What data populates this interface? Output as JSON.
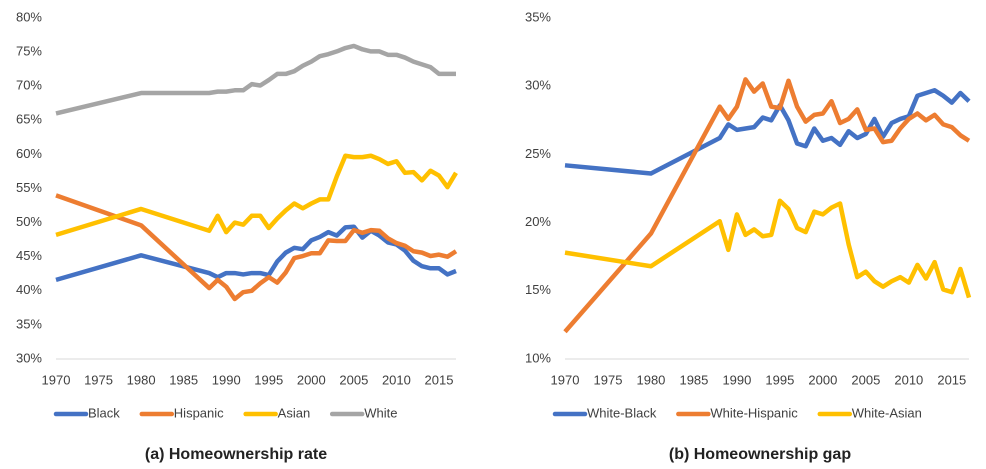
{
  "chart_data": [
    {
      "type": "line",
      "caption": "(a) Homeownership rate",
      "x": [
        1970,
        1980,
        1988,
        1989,
        1990,
        1991,
        1992,
        1993,
        1994,
        1995,
        1996,
        1997,
        1998,
        1999,
        2000,
        2001,
        2002,
        2003,
        2004,
        2005,
        2006,
        2007,
        2008,
        2009,
        2010,
        2011,
        2012,
        2013,
        2014,
        2015,
        2016,
        2017
      ],
      "xlim": [
        1970,
        2017
      ],
      "xticks": [
        1970,
        1975,
        1980,
        1985,
        1990,
        1995,
        2000,
        2005,
        2010,
        2015
      ],
      "ylim": [
        30,
        80
      ],
      "yticks": [
        {
          "value": 30,
          "label": "30%"
        },
        {
          "value": 35,
          "label": "35%"
        },
        {
          "value": 40,
          "label": "40%"
        },
        {
          "value": 45,
          "label": "45%"
        },
        {
          "value": 50,
          "label": "50%"
        },
        {
          "value": 55,
          "label": "55%"
        },
        {
          "value": 60,
          "label": "60%"
        },
        {
          "value": 65,
          "label": "65%"
        },
        {
          "value": 70,
          "label": "70%"
        },
        {
          "value": 75,
          "label": "75%"
        },
        {
          "value": 80,
          "label": "80%"
        }
      ],
      "grid": false,
      "legend": "bottom",
      "series": [
        {
          "name": "Black",
          "color": "#4472c4",
          "values": [
            41.6,
            45.2,
            42.6,
            42.0,
            42.6,
            42.6,
            42.4,
            42.6,
            42.6,
            42.3,
            44.3,
            45.6,
            46.3,
            46.1,
            47.4,
            47.9,
            48.6,
            48.1,
            49.3,
            49.4,
            47.8,
            48.8,
            48.1,
            47.1,
            46.8,
            45.9,
            44.4,
            43.6,
            43.3,
            43.3,
            42.4,
            42.9
          ]
        },
        {
          "name": "Hispanic",
          "color": "#ed7d31",
          "values": [
            54.0,
            49.6,
            40.4,
            41.6,
            40.6,
            38.8,
            39.8,
            40.0,
            41.1,
            42.0,
            41.2,
            42.7,
            44.8,
            45.1,
            45.5,
            45.5,
            47.4,
            47.3,
            47.3,
            48.9,
            48.5,
            48.9,
            48.8,
            47.7,
            47.0,
            46.6,
            45.8,
            45.6,
            45.1,
            45.3,
            45.0,
            45.8
          ]
        },
        {
          "name": "Asian",
          "color": "#ffc000",
          "values": [
            48.2,
            52.0,
            48.8,
            51.0,
            48.6,
            50.0,
            49.7,
            51.0,
            51.0,
            49.2,
            50.6,
            51.8,
            52.8,
            52.1,
            52.8,
            53.4,
            53.4,
            56.8,
            59.8,
            59.6,
            59.6,
            59.8,
            59.3,
            58.6,
            59.0,
            57.3,
            57.4,
            56.2,
            57.6,
            56.9,
            55.2,
            57.3
          ]
        },
        {
          "name": "White",
          "color": "#a5a5a5",
          "values": [
            66.0,
            69.0,
            69.0,
            69.2,
            69.2,
            69.4,
            69.4,
            70.3,
            70.1,
            70.9,
            71.8,
            71.8,
            72.2,
            73.0,
            73.6,
            74.4,
            74.7,
            75.1,
            75.6,
            75.9,
            75.4,
            75.1,
            75.1,
            74.6,
            74.6,
            74.2,
            73.6,
            73.2,
            72.8,
            71.8,
            71.8,
            71.8
          ]
        }
      ]
    },
    {
      "type": "line",
      "caption": "(b) Homeownership gap",
      "x": [
        1970,
        1980,
        1988,
        1989,
        1990,
        1991,
        1992,
        1993,
        1994,
        1995,
        1996,
        1997,
        1998,
        1999,
        2000,
        2001,
        2002,
        2003,
        2004,
        2005,
        2006,
        2007,
        2008,
        2009,
        2010,
        2011,
        2012,
        2013,
        2014,
        2015,
        2016,
        2017
      ],
      "xlim": [
        1970,
        2017
      ],
      "xticks": [
        1970,
        1975,
        1980,
        1985,
        1990,
        1995,
        2000,
        2005,
        2010,
        2015
      ],
      "ylim": [
        10,
        35
      ],
      "yticks": [
        {
          "value": 10,
          "label": "10%"
        },
        {
          "value": 15,
          "label": "15%"
        },
        {
          "value": 20,
          "label": "20%"
        },
        {
          "value": 25,
          "label": "25%"
        },
        {
          "value": 30,
          "label": "30%"
        },
        {
          "value": 35,
          "label": "35%"
        }
      ],
      "grid": false,
      "legend": "bottom",
      "series": [
        {
          "name": "White-Black",
          "color": "#4472c4",
          "values": [
            24.2,
            23.6,
            26.2,
            27.2,
            26.8,
            26.9,
            27.0,
            27.7,
            27.5,
            28.6,
            27.5,
            25.8,
            25.6,
            26.9,
            26.0,
            26.2,
            25.7,
            26.7,
            26.2,
            26.5,
            27.6,
            26.3,
            27.3,
            27.6,
            27.8,
            29.3,
            29.5,
            29.7,
            29.3,
            28.8,
            29.5,
            28.9
          ]
        },
        {
          "name": "White-Hispanic",
          "color": "#ed7d31",
          "values": [
            12.0,
            19.2,
            28.5,
            27.6,
            28.5,
            30.5,
            29.6,
            30.2,
            28.5,
            28.4,
            30.4,
            28.5,
            27.4,
            27.9,
            28.0,
            28.9,
            27.3,
            27.6,
            28.3,
            26.8,
            26.9,
            25.9,
            26.0,
            26.9,
            27.6,
            28.0,
            27.5,
            27.9,
            27.2,
            27.0,
            26.4,
            26.0
          ]
        },
        {
          "name": "White-Asian",
          "color": "#ffc000",
          "values": [
            17.8,
            16.8,
            20.1,
            18.0,
            20.6,
            19.1,
            19.5,
            19.0,
            19.1,
            21.6,
            21.0,
            19.6,
            19.3,
            20.8,
            20.6,
            21.1,
            21.4,
            18.4,
            16.0,
            16.4,
            15.7,
            15.3,
            15.7,
            16.0,
            15.6,
            16.9,
            15.9,
            17.1,
            15.1,
            14.9,
            16.6,
            14.5
          ]
        }
      ]
    }
  ]
}
